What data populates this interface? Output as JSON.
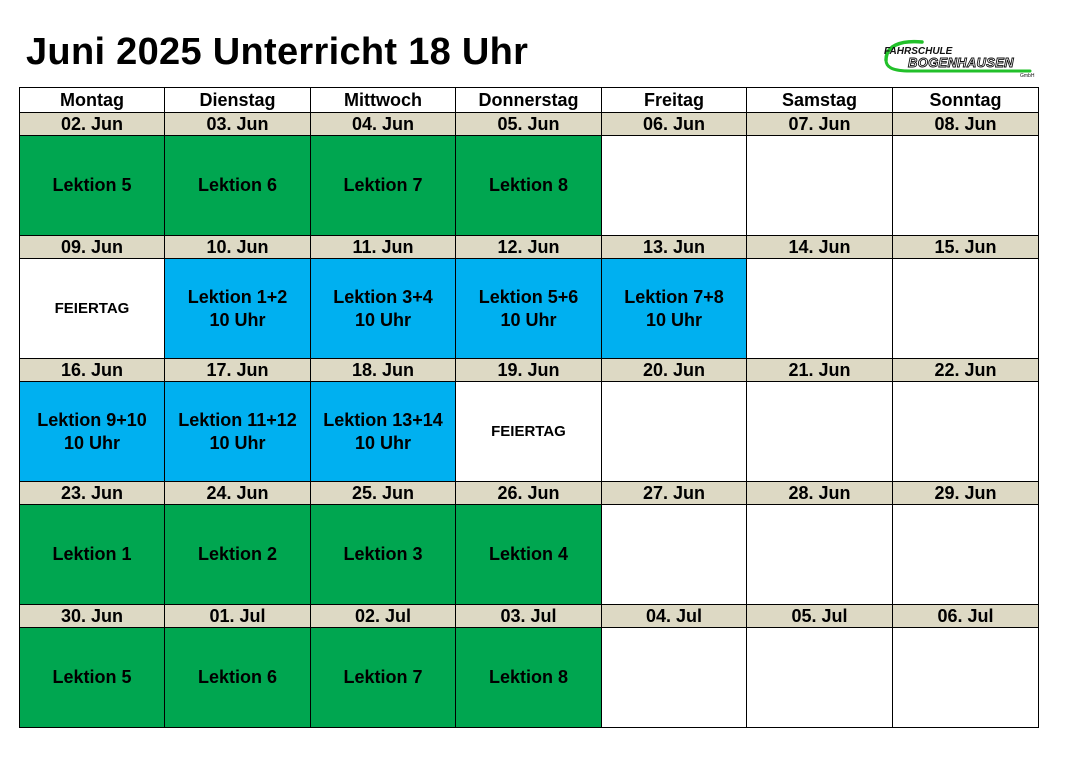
{
  "title": "Juni 2025 Unterricht 18 Uhr",
  "logo": {
    "line1": "FAHRSCHULE",
    "line2": "BOGENHAUSEN",
    "line3": "GmbH"
  },
  "colors": {
    "green": "#00a650",
    "blue": "#00b0f0",
    "date_row": "#ddd9c4",
    "white": "#ffffff"
  },
  "weekdays": [
    "Montag",
    "Dienstag",
    "Mittwoch",
    "Donnerstag",
    "Freitag",
    "Samstag",
    "Sonntag"
  ],
  "weeks": [
    {
      "dates": [
        "02. Jun",
        "03. Jun",
        "04. Jun",
        "05. Jun",
        "06. Jun",
        "07. Jun",
        "08. Jun"
      ],
      "cells": [
        {
          "lines": [
            "Lektion 5"
          ],
          "color": "green"
        },
        {
          "lines": [
            "Lektion 6"
          ],
          "color": "green"
        },
        {
          "lines": [
            "Lektion 7"
          ],
          "color": "green"
        },
        {
          "lines": [
            "Lektion 8"
          ],
          "color": "green"
        },
        {
          "lines": [],
          "color": "white"
        },
        {
          "lines": [],
          "color": "white"
        },
        {
          "lines": [],
          "color": "white"
        }
      ]
    },
    {
      "dates": [
        "09. Jun",
        "10. Jun",
        "11. Jun",
        "12. Jun",
        "13. Jun",
        "14. Jun",
        "15. Jun"
      ],
      "cells": [
        {
          "lines": [
            "FEIERTAG"
          ],
          "color": "white",
          "holiday": true
        },
        {
          "lines": [
            "Lektion 1+2",
            "10 Uhr"
          ],
          "color": "blue"
        },
        {
          "lines": [
            "Lektion 3+4",
            "10 Uhr"
          ],
          "color": "blue"
        },
        {
          "lines": [
            "Lektion 5+6",
            "10 Uhr"
          ],
          "color": "blue"
        },
        {
          "lines": [
            "Lektion 7+8",
            "10 Uhr"
          ],
          "color": "blue"
        },
        {
          "lines": [],
          "color": "white"
        },
        {
          "lines": [],
          "color": "white"
        }
      ]
    },
    {
      "dates": [
        "16. Jun",
        "17. Jun",
        "18. Jun",
        "19. Jun",
        "20. Jun",
        "21. Jun",
        "22. Jun"
      ],
      "cells": [
        {
          "lines": [
            "Lektion 9+10",
            "10 Uhr"
          ],
          "color": "blue"
        },
        {
          "lines": [
            "Lektion 11+12",
            "10 Uhr"
          ],
          "color": "blue"
        },
        {
          "lines": [
            "Lektion 13+14",
            "10 Uhr"
          ],
          "color": "blue"
        },
        {
          "lines": [
            "FEIERTAG"
          ],
          "color": "white",
          "holiday": true
        },
        {
          "lines": [],
          "color": "white"
        },
        {
          "lines": [],
          "color": "white"
        },
        {
          "lines": [],
          "color": "white"
        }
      ]
    },
    {
      "dates": [
        "23. Jun",
        "24. Jun",
        "25. Jun",
        "26. Jun",
        "27. Jun",
        "28. Jun",
        "29. Jun"
      ],
      "cells": [
        {
          "lines": [
            "Lektion 1"
          ],
          "color": "green"
        },
        {
          "lines": [
            "Lektion 2"
          ],
          "color": "green"
        },
        {
          "lines": [
            "Lektion 3"
          ],
          "color": "green"
        },
        {
          "lines": [
            "Lektion 4"
          ],
          "color": "green"
        },
        {
          "lines": [],
          "color": "white"
        },
        {
          "lines": [],
          "color": "white"
        },
        {
          "lines": [],
          "color": "white"
        }
      ]
    },
    {
      "dates": [
        "30. Jun",
        "01. Jul",
        "02. Jul",
        "03. Jul",
        "04. Jul",
        "05. Jul",
        "06. Jul"
      ],
      "cells": [
        {
          "lines": [
            "Lektion 5"
          ],
          "color": "green"
        },
        {
          "lines": [
            "Lektion 6"
          ],
          "color": "green"
        },
        {
          "lines": [
            "Lektion 7"
          ],
          "color": "green"
        },
        {
          "lines": [
            "Lektion 8"
          ],
          "color": "green"
        },
        {
          "lines": [],
          "color": "white"
        },
        {
          "lines": [],
          "color": "white"
        },
        {
          "lines": [],
          "color": "white"
        }
      ]
    }
  ]
}
